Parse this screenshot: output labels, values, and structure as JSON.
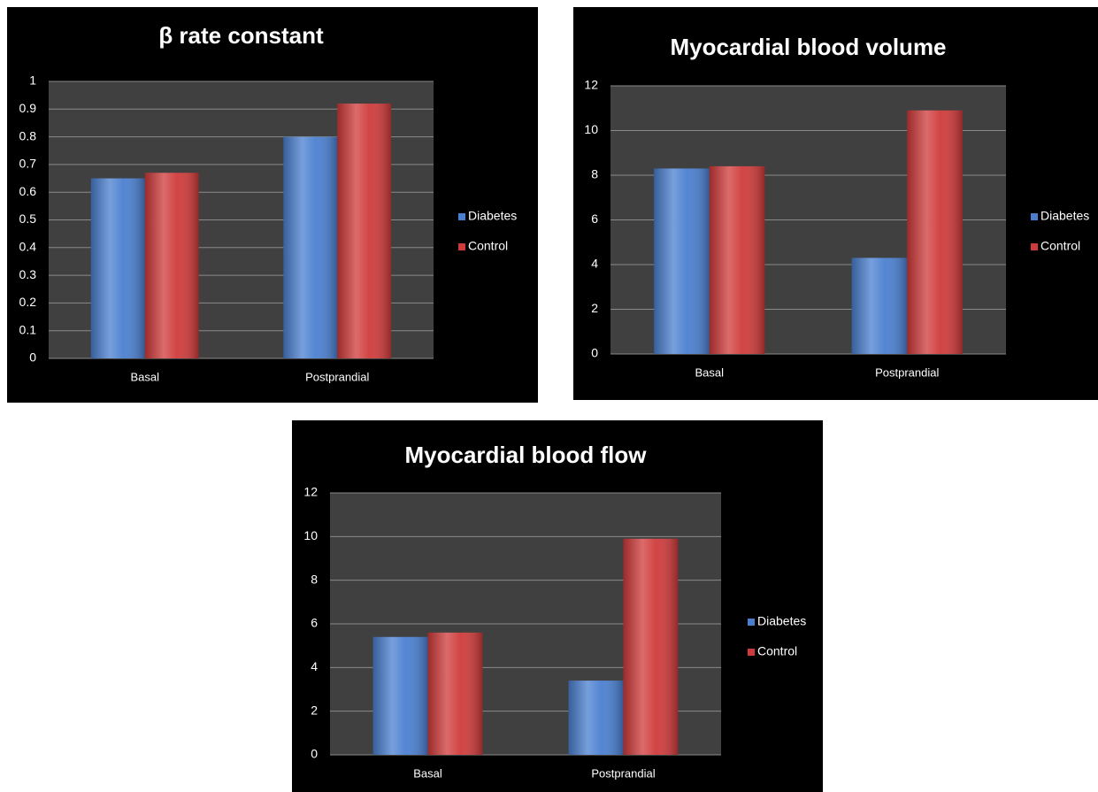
{
  "chart_data": [
    {
      "type": "bar",
      "title": "β rate constant",
      "categories": [
        "Basal",
        "Postprandial"
      ],
      "series": [
        {
          "name": "Diabetes",
          "color": "#4a7fd0",
          "values": [
            0.65,
            0.8
          ]
        },
        {
          "name": "Control",
          "color": "#cf3a3a",
          "values": [
            0.67,
            0.92
          ]
        }
      ],
      "ylim": [
        0,
        1
      ],
      "yticks": [
        0,
        0.1,
        0.2,
        0.3,
        0.4,
        0.5,
        0.6,
        0.7,
        0.8,
        0.9,
        1
      ],
      "grid": true,
      "legend": "right"
    },
    {
      "type": "bar",
      "title": "Myocardial blood volume",
      "categories": [
        "Basal",
        "Postprandial"
      ],
      "series": [
        {
          "name": "Diabetes",
          "color": "#4a7fd0",
          "values": [
            8.3,
            4.3
          ]
        },
        {
          "name": "Control",
          "color": "#cf3a3a",
          "values": [
            8.4,
            10.9
          ]
        }
      ],
      "ylim": [
        0,
        12
      ],
      "yticks": [
        0,
        2,
        4,
        6,
        8,
        10,
        12
      ],
      "grid": true,
      "legend": "right"
    },
    {
      "type": "bar",
      "title": "Myocardial blood flow",
      "categories": [
        "Basal",
        "Postprandial"
      ],
      "series": [
        {
          "name": "Diabetes",
          "color": "#4a7fd0",
          "values": [
            5.4,
            3.4
          ]
        },
        {
          "name": "Control",
          "color": "#cf3a3a",
          "values": [
            5.6,
            9.9
          ]
        }
      ],
      "ylim": [
        0,
        12
      ],
      "yticks": [
        0,
        2,
        4,
        6,
        8,
        10,
        12
      ],
      "grid": true,
      "legend": "right"
    }
  ]
}
